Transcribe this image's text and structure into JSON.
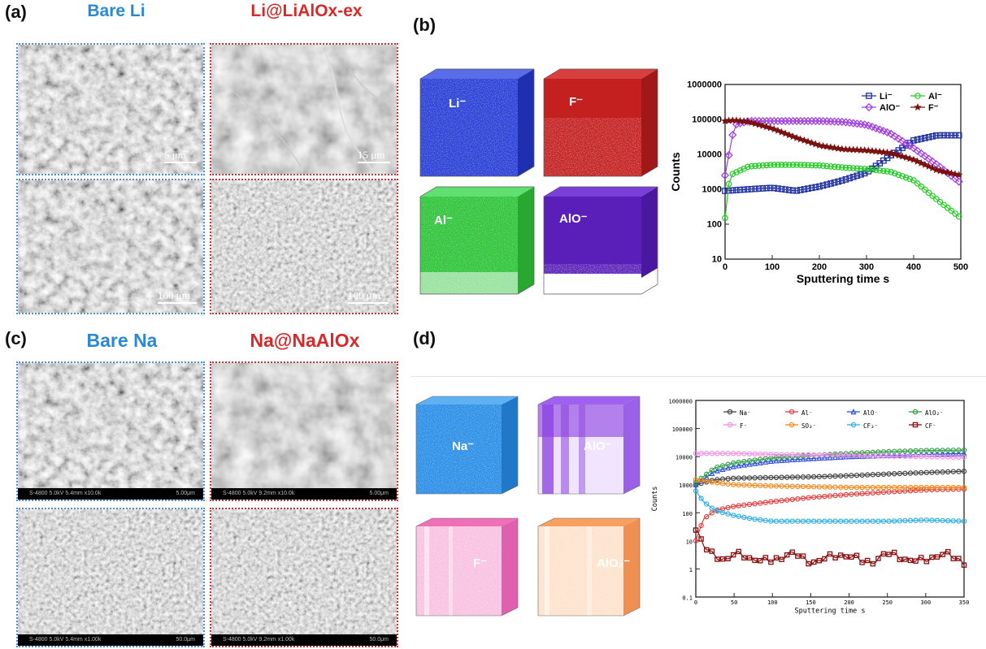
{
  "panels": {
    "a": {
      "label": "(a)",
      "left_title": "Bare Li",
      "right_title": "Li@LiAlOx-ex",
      "scale_top_left": "5 μm",
      "scale_top_right": "15 μm",
      "scale_bottom_left": "100 μm",
      "scale_bottom_right": "100 μm"
    },
    "b": {
      "label": "(b)",
      "cubes": [
        "Li⁻",
        "F⁻",
        "Al⁻",
        "AlO⁻"
      ]
    },
    "c": {
      "label": "(c)",
      "left_title": "Bare Na",
      "right_title": "Na@NaAlOx",
      "info_left_1": "S-4800 5.0kV 5.4mm x10.0k",
      "info_right_1": "5.00μm",
      "info_left_2": "S-4800 5.0kV 9.2mm x10.0k",
      "info_right_2": "5.00μm",
      "info_left_3": "S-4800 5.0kV 5.4mm x1.00k",
      "info_right_3": "50.0μm",
      "info_left_4": "S-4800 5.0kV 9.2mm x1.00k",
      "info_right_4": "50.0μm"
    },
    "d": {
      "label": "(d)",
      "cubes": [
        "Na⁻",
        "AlO⁻",
        "F⁻",
        "AlO₂⁻"
      ]
    }
  },
  "colors": {
    "blue_title": "#2b88d4",
    "red_title": "#d62a2a",
    "li_cube": "#2a3fd6",
    "f_cube": "#c42020",
    "al_cube": "#2fc43a",
    "alo_cube": "#5a1fb8",
    "na_cube": "#2a8ee6",
    "alo_d_cube": "#8a3fe0",
    "f_d_cube": "#e0409a",
    "alo2_cube": "#f08030"
  },
  "chart_data": [
    {
      "type": "line",
      "xlabel": "Sputtering time s",
      "ylabel": "Counts",
      "xlim": [
        0,
        500
      ],
      "ylim": [
        10,
        1000000
      ],
      "yscale": "log",
      "xticks": [
        0,
        100,
        200,
        300,
        400,
        500
      ],
      "yticks": [
        "10",
        "100",
        "1000",
        "10000",
        "100000",
        "1000000"
      ],
      "legend_position": "top-right",
      "series": [
        {
          "name": "Li⁻",
          "color": "#1f2fa0",
          "marker": "square",
          "x": [
            0,
            50,
            100,
            150,
            200,
            250,
            300,
            350,
            400,
            450,
            500
          ],
          "y": [
            900,
            1000,
            1100,
            900,
            1200,
            1800,
            3000,
            9000,
            25000,
            35000,
            35000
          ]
        },
        {
          "name": "Al⁻",
          "color": "#22cc22",
          "marker": "circle",
          "x": [
            0,
            10,
            50,
            100,
            150,
            200,
            250,
            300,
            350,
            400,
            450,
            500
          ],
          "y": [
            150,
            2500,
            4500,
            5000,
            5000,
            4800,
            4200,
            3800,
            3200,
            1800,
            500,
            150
          ]
        },
        {
          "name": "AlO⁻",
          "color": "#a040e0",
          "marker": "diamond",
          "x": [
            0,
            20,
            50,
            100,
            150,
            200,
            250,
            300,
            350,
            400,
            450,
            500
          ],
          "y": [
            2500,
            70000,
            90000,
            90000,
            90000,
            90000,
            85000,
            70000,
            40000,
            15000,
            5000,
            1500
          ]
        },
        {
          "name": "F⁻",
          "color": "#7a1010",
          "marker": "star",
          "x": [
            0,
            20,
            50,
            100,
            150,
            200,
            250,
            300,
            350,
            400,
            450,
            500
          ],
          "y": [
            90000,
            95000,
            85000,
            55000,
            30000,
            18000,
            14000,
            13000,
            11000,
            7000,
            3500,
            2500
          ]
        }
      ]
    },
    {
      "type": "line",
      "xlabel": "Sputtering time s",
      "ylabel": "Counts",
      "xlim": [
        0,
        350
      ],
      "ylim": [
        0.1,
        1000000
      ],
      "yscale": "log",
      "xticks": [
        0,
        50,
        100,
        150,
        200,
        250,
        300,
        350
      ],
      "yticks": [
        "0.1",
        "1",
        "10",
        "100",
        "1000",
        "10000",
        "100000",
        "1000000"
      ],
      "legend_position": "top",
      "series": [
        {
          "name": "Na⁻",
          "color": "#404040",
          "marker": "circle",
          "x": [
            0,
            25,
            50,
            100,
            150,
            200,
            250,
            300,
            350
          ],
          "y": [
            1000,
            1500,
            1700,
            1800,
            1900,
            2100,
            2400,
            2700,
            3000
          ]
        },
        {
          "name": "Al⁻",
          "color": "#e04040",
          "marker": "circle",
          "x": [
            0,
            10,
            25,
            50,
            100,
            150,
            200,
            250,
            300,
            350
          ],
          "y": [
            10,
            60,
            120,
            170,
            250,
            350,
            450,
            550,
            650,
            700
          ]
        },
        {
          "name": "AlO⁻",
          "color": "#3050e0",
          "marker": "triangle",
          "x": [
            0,
            25,
            50,
            100,
            150,
            200,
            250,
            300,
            350
          ],
          "y": [
            1000,
            3000,
            4500,
            7000,
            8500,
            10000,
            11000,
            12000,
            13000
          ]
        },
        {
          "name": "AlO₂⁻",
          "color": "#30a040",
          "marker": "circle",
          "x": [
            0,
            25,
            50,
            100,
            150,
            200,
            250,
            300,
            350
          ],
          "y": [
            1200,
            4000,
            6000,
            9000,
            11000,
            13000,
            15000,
            16500,
            17000
          ]
        },
        {
          "name": "F⁻",
          "color": "#f090e8",
          "marker": "circle",
          "x": [
            0,
            50,
            100,
            150,
            200,
            250,
            300,
            350
          ],
          "y": [
            13000,
            13000,
            12000,
            11500,
            11000,
            10500,
            10000,
            9500
          ]
        },
        {
          "name": "SO₃⁻",
          "color": "#f08a20",
          "marker": "circle",
          "x": [
            0,
            25,
            50,
            100,
            150,
            200,
            250,
            300,
            350
          ],
          "y": [
            1500,
            1200,
            1000,
            900,
            850,
            800,
            800,
            800,
            800
          ]
        },
        {
          "name": "CF₃⁻",
          "color": "#30b0e0",
          "marker": "circle",
          "x": [
            0,
            10,
            25,
            50,
            75,
            100,
            150,
            200,
            250,
            300,
            350
          ],
          "y": [
            600,
            250,
            120,
            80,
            60,
            50,
            50,
            50,
            50,
            55,
            50
          ]
        },
        {
          "name": "CF⁻",
          "color": "#8a1010",
          "marker": "square",
          "x": [
            0,
            10,
            20,
            30,
            40,
            50,
            70,
            90,
            110,
            130,
            150,
            170,
            190,
            210,
            230,
            250,
            270,
            290,
            310,
            330,
            350
          ],
          "y": [
            20,
            8,
            5,
            3,
            2,
            3,
            2,
            3,
            2,
            3,
            2,
            3,
            2,
            3,
            2,
            3,
            2,
            3,
            2,
            3,
            2
          ]
        }
      ]
    }
  ]
}
